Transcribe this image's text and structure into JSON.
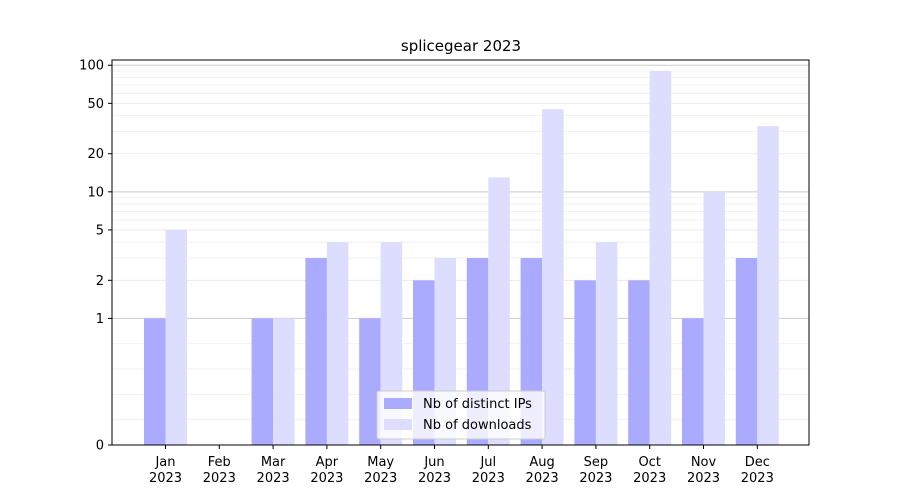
{
  "chart_data": {
    "type": "bar",
    "title": "splicegear 2023",
    "xlabel": "",
    "ylabel": "",
    "yscale": "symlog",
    "ylim": [
      0,
      110
    ],
    "yticks": [
      0,
      1,
      2,
      5,
      10,
      20,
      50,
      100
    ],
    "ytick_labels": [
      "0",
      "1",
      "2",
      "5",
      "10",
      "20",
      "50",
      "100"
    ],
    "grid": "horizontal",
    "legend_position": "bottom-center",
    "categories": [
      {
        "month": "Jan",
        "year": "2023"
      },
      {
        "month": "Feb",
        "year": "2023"
      },
      {
        "month": "Mar",
        "year": "2023"
      },
      {
        "month": "Apr",
        "year": "2023"
      },
      {
        "month": "May",
        "year": "2023"
      },
      {
        "month": "Jun",
        "year": "2023"
      },
      {
        "month": "Jul",
        "year": "2023"
      },
      {
        "month": "Aug",
        "year": "2023"
      },
      {
        "month": "Sep",
        "year": "2023"
      },
      {
        "month": "Oct",
        "year": "2023"
      },
      {
        "month": "Nov",
        "year": "2023"
      },
      {
        "month": "Dec",
        "year": "2023"
      }
    ],
    "series": [
      {
        "name": "Nb of distinct IPs",
        "color": "#aaaaff",
        "values": [
          1,
          0,
          1,
          3,
          1,
          2,
          3,
          3,
          2,
          2,
          1,
          3
        ]
      },
      {
        "name": "Nb of downloads",
        "color": "#ddddff",
        "values": [
          5,
          0,
          1,
          4,
          4,
          3,
          13,
          45,
          4,
          90,
          10,
          33
        ]
      }
    ]
  }
}
